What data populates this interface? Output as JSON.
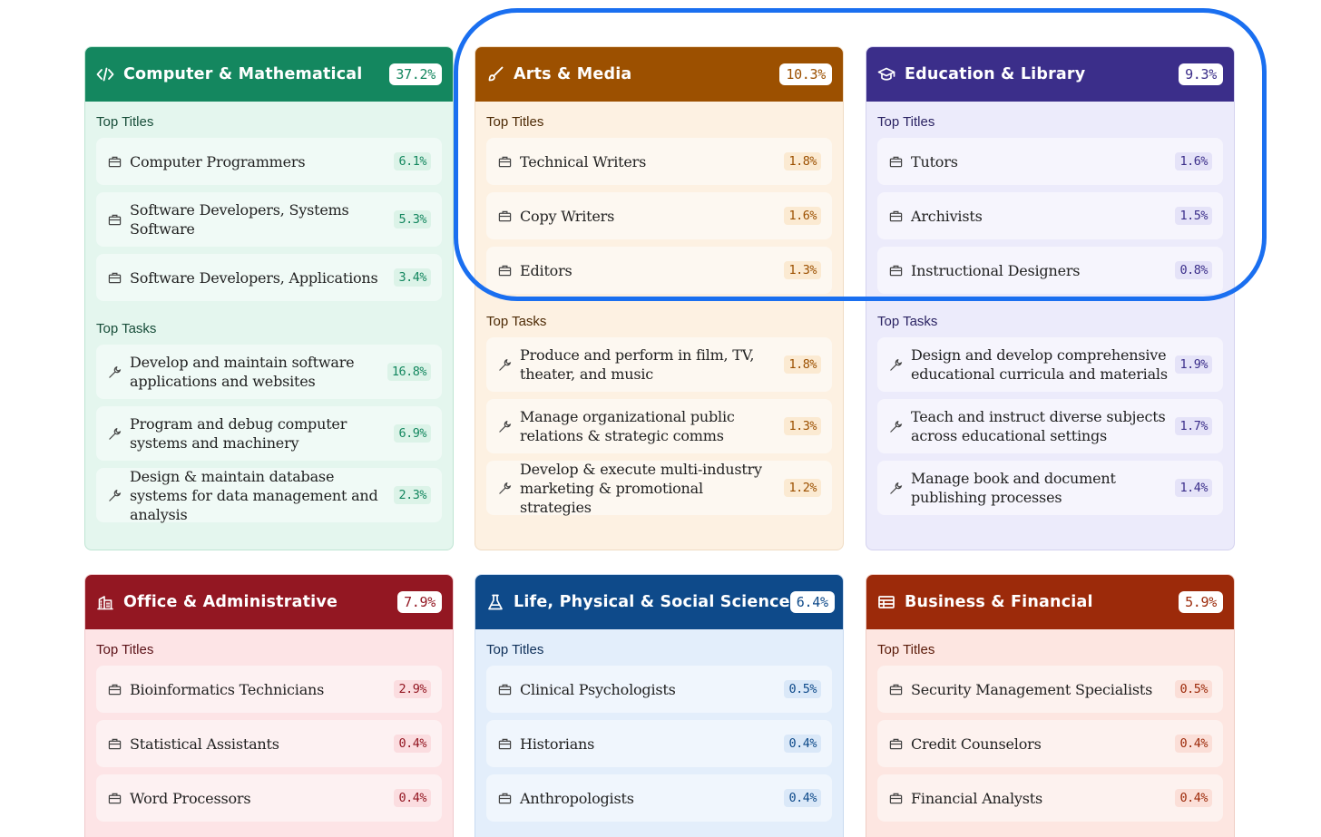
{
  "labels": {
    "titles": "Top Titles",
    "tasks": "Top Tasks"
  },
  "cards": [
    {
      "id": "computer",
      "title": "Computer & Mathematical",
      "share": "37.2%",
      "icon": "code-icon",
      "color": "#14875f",
      "titles": [
        {
          "text": "Computer Programmers",
          "pct": "6.1%"
        },
        {
          "text": "Software Developers, Systems Software",
          "pct": "5.3%"
        },
        {
          "text": "Software Developers, Applications",
          "pct": "3.4%"
        }
      ],
      "tasks": [
        {
          "text": "Develop and maintain software applications and websites",
          "pct": "16.8%"
        },
        {
          "text": "Program and debug computer systems and machinery",
          "pct": "6.9%"
        },
        {
          "text": "Design & maintain database systems for data management and analysis",
          "pct": "2.3%"
        }
      ]
    },
    {
      "id": "arts",
      "title": "Arts & Media",
      "share": "10.3%",
      "icon": "brush-icon",
      "color": "#9c5000",
      "titles": [
        {
          "text": "Technical Writers",
          "pct": "1.8%"
        },
        {
          "text": "Copy Writers",
          "pct": "1.6%"
        },
        {
          "text": "Editors",
          "pct": "1.3%"
        }
      ],
      "tasks": [
        {
          "text": "Produce and perform in film, TV, theater, and music",
          "pct": "1.8%"
        },
        {
          "text": "Manage organizational public relations & strategic comms",
          "pct": "1.3%"
        },
        {
          "text": "Develop & execute multi-industry marketing & promotional strategies",
          "pct": "1.2%"
        }
      ]
    },
    {
      "id": "education",
      "title": "Education & Library",
      "share": "9.3%",
      "icon": "graduation-cap-icon",
      "color": "#3b2e8a",
      "titles": [
        {
          "text": "Tutors",
          "pct": "1.6%"
        },
        {
          "text": "Archivists",
          "pct": "1.5%"
        },
        {
          "text": "Instructional Designers",
          "pct": "0.8%"
        }
      ],
      "tasks": [
        {
          "text": "Design and develop comprehensive educational curricula and materials",
          "pct": "1.9%"
        },
        {
          "text": "Teach and instruct diverse subjects across educational settings",
          "pct": "1.7%"
        },
        {
          "text": "Manage book and document publishing processes",
          "pct": "1.4%"
        }
      ]
    },
    {
      "id": "office",
      "title": "Office & Administrative",
      "share": "7.9%",
      "icon": "building-icon",
      "color": "#931722",
      "titles": [
        {
          "text": "Bioinformatics Technicians",
          "pct": "2.9%"
        },
        {
          "text": "Statistical Assistants",
          "pct": "0.4%"
        },
        {
          "text": "Word Processors",
          "pct": "0.4%"
        }
      ]
    },
    {
      "id": "science",
      "title": "Life, Physical & Social Science",
      "share": "6.4%",
      "icon": "flask-icon",
      "color": "#0e4a8a",
      "titles": [
        {
          "text": "Clinical Psychologists",
          "pct": "0.5%"
        },
        {
          "text": "Historians",
          "pct": "0.4%"
        },
        {
          "text": "Anthropologists",
          "pct": "0.4%"
        }
      ]
    },
    {
      "id": "business",
      "title": "Business & Financial",
      "share": "5.9%",
      "icon": "table-icon",
      "color": "#9c2a0a",
      "titles": [
        {
          "text": "Security Management Specialists",
          "pct": "0.5%"
        },
        {
          "text": "Credit Counselors",
          "pct": "0.4%"
        },
        {
          "text": "Financial Analysts",
          "pct": "0.4%"
        }
      ]
    }
  ],
  "row_icons": {
    "title": "briefcase-icon",
    "task": "wrench-icon"
  }
}
